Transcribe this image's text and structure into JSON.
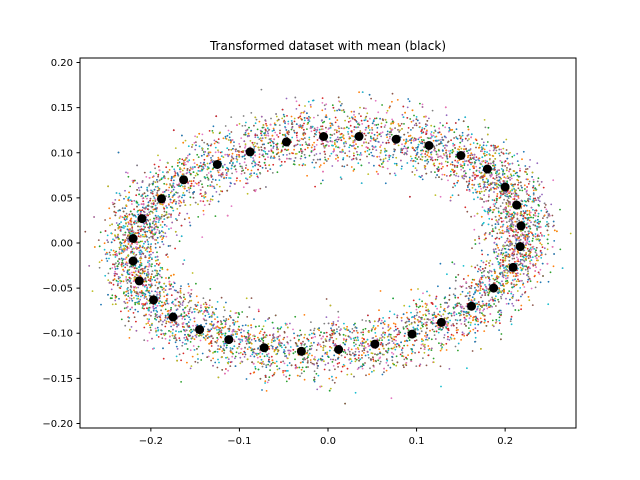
{
  "chart_data": {
    "type": "scatter",
    "title": "Transformed dataset with mean (black)",
    "xlabel": "",
    "ylabel": "",
    "xlim": [
      -0.28,
      0.28
    ],
    "ylim": [
      -0.205,
      0.205
    ],
    "xticks": [
      -0.2,
      -0.1,
      0.0,
      0.1,
      0.2
    ],
    "xtick_labels": [
      "−0.2",
      "−0.1",
      "0.0",
      "0.1",
      "0.2"
    ],
    "yticks": [
      -0.2,
      -0.15,
      -0.1,
      -0.05,
      0.0,
      0.05,
      0.1,
      0.15,
      0.2
    ],
    "ytick_labels": [
      "−0.20",
      "−0.15",
      "−0.10",
      "−0.05",
      "0.00",
      "0.05",
      "0.10",
      "0.15",
      "0.20"
    ],
    "grid": false,
    "legend": "none",
    "colors": {
      "mean": "#000000",
      "cloud": [
        "#1f77b4",
        "#ff7f0e",
        "#2ca02c",
        "#d62728",
        "#9467bd",
        "#8c564b",
        "#e377c2",
        "#7f7f7f",
        "#bcbd22",
        "#17becf"
      ]
    },
    "series": [
      {
        "role": "mean",
        "points": [
          [
            -0.22,
            0.005
          ],
          [
            -0.21,
            0.027
          ],
          [
            -0.188,
            0.049
          ],
          [
            -0.163,
            0.07
          ],
          [
            -0.125,
            0.087
          ],
          [
            -0.088,
            0.101
          ],
          [
            -0.047,
            0.112
          ],
          [
            -0.005,
            0.118
          ],
          [
            0.035,
            0.118
          ],
          [
            0.077,
            0.115
          ],
          [
            0.114,
            0.108
          ],
          [
            0.15,
            0.097
          ],
          [
            0.18,
            0.082
          ],
          [
            0.2,
            0.062
          ],
          [
            0.213,
            0.042
          ],
          [
            0.218,
            0.019
          ],
          [
            0.217,
            -0.004
          ],
          [
            0.209,
            -0.027
          ],
          [
            0.187,
            -0.05
          ],
          [
            0.162,
            -0.07
          ],
          [
            0.128,
            -0.088
          ],
          [
            0.095,
            -0.101
          ],
          [
            0.053,
            -0.112
          ],
          [
            0.012,
            -0.118
          ],
          [
            -0.03,
            -0.12
          ],
          [
            -0.072,
            -0.116
          ],
          [
            -0.112,
            -0.107
          ],
          [
            -0.145,
            -0.096
          ],
          [
            -0.175,
            -0.082
          ],
          [
            -0.197,
            -0.063
          ],
          [
            -0.213,
            -0.042
          ],
          [
            -0.22,
            -0.02
          ]
        ]
      }
    ],
    "cloud": {
      "description_free_note": "",
      "count": 8000,
      "spread": 0.018
    }
  }
}
